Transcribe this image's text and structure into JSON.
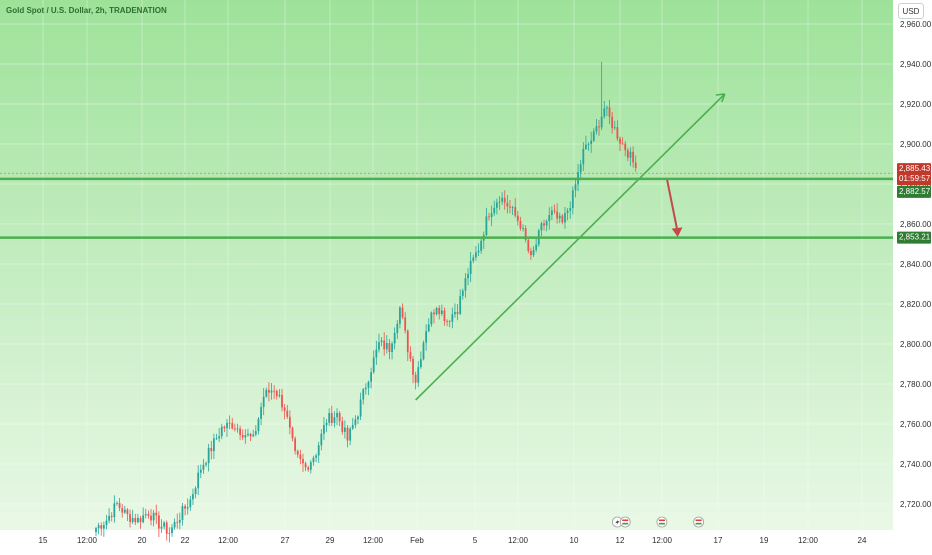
{
  "header": {
    "symbol_title": "Gold Spot / U.S. Dollar, 2h, TRADENATION",
    "currency_button": "USD"
  },
  "colors": {
    "plot_background": "#9ee29a",
    "plot_background_bottom": "#e9f8e6",
    "bullish_candle": "#26a69a",
    "bearish_candle": "#ef5350",
    "level_line": "#4caf50",
    "trend_line": "#4caf50",
    "arrow": "#c44a4a",
    "price_tag_red": "#c0392b",
    "price_tag_green": "#2e7d32",
    "axis_text": "#2d2d2d"
  },
  "chart_data": {
    "type": "candlestick",
    "title": "Gold Spot / U.S. Dollar, 2h, TRADENATION",
    "y_axis": {
      "ticks": [
        "2,720.00",
        "2,740.00",
        "2,760.00",
        "2,780.00",
        "2,800.00",
        "2,820.00",
        "2,840.00",
        "2,860.00",
        "2,880.00",
        "2,900.00",
        "2,920.00",
        "2,940.00",
        "2,960.00"
      ],
      "tick_values": [
        2720,
        2740,
        2760,
        2780,
        2800,
        2820,
        2840,
        2860,
        2880,
        2900,
        2920,
        2940,
        2960
      ],
      "range": [
        2707,
        2972
      ],
      "side": "right"
    },
    "x_axis": {
      "ticks": [
        "15",
        "12:00",
        "20",
        "22",
        "12:00",
        "27",
        "29",
        "12:00",
        "Feb",
        "5",
        "12:00",
        "10",
        "12",
        "12:00",
        "17",
        "19",
        "12:00",
        "24"
      ],
      "range_index": [
        0,
        222
      ]
    },
    "candles_close_path": [
      {
        "i": 0,
        "close": 2708
      },
      {
        "i": 4,
        "close": 2712
      },
      {
        "i": 8,
        "close": 2720
      },
      {
        "i": 12,
        "close": 2714
      },
      {
        "i": 16,
        "close": 2712
      },
      {
        "i": 20,
        "close": 2716
      },
      {
        "i": 24,
        "close": 2710
      },
      {
        "i": 28,
        "close": 2706
      },
      {
        "i": 32,
        "close": 2714
      },
      {
        "i": 36,
        "close": 2722
      },
      {
        "i": 40,
        "close": 2738
      },
      {
        "i": 44,
        "close": 2748
      },
      {
        "i": 48,
        "close": 2758
      },
      {
        "i": 52,
        "close": 2760
      },
      {
        "i": 56,
        "close": 2756
      },
      {
        "i": 60,
        "close": 2752
      },
      {
        "i": 64,
        "close": 2774
      },
      {
        "i": 68,
        "close": 2778
      },
      {
        "i": 72,
        "close": 2768
      },
      {
        "i": 76,
        "close": 2744
      },
      {
        "i": 80,
        "close": 2738
      },
      {
        "i": 84,
        "close": 2746
      },
      {
        "i": 88,
        "close": 2762
      },
      {
        "i": 92,
        "close": 2765
      },
      {
        "i": 96,
        "close": 2752
      },
      {
        "i": 100,
        "close": 2766
      },
      {
        "i": 104,
        "close": 2784
      },
      {
        "i": 108,
        "close": 2800
      },
      {
        "i": 112,
        "close": 2798
      },
      {
        "i": 116,
        "close": 2818
      },
      {
        "i": 119,
        "close": 2798
      },
      {
        "i": 122,
        "close": 2782
      },
      {
        "i": 126,
        "close": 2808
      },
      {
        "i": 130,
        "close": 2820
      },
      {
        "i": 134,
        "close": 2812
      },
      {
        "i": 138,
        "close": 2818
      },
      {
        "i": 142,
        "close": 2836
      },
      {
        "i": 146,
        "close": 2848
      },
      {
        "i": 150,
        "close": 2866
      },
      {
        "i": 154,
        "close": 2874
      },
      {
        "i": 158,
        "close": 2868
      },
      {
        "i": 162,
        "close": 2860
      },
      {
        "i": 166,
        "close": 2842
      },
      {
        "i": 170,
        "close": 2858
      },
      {
        "i": 174,
        "close": 2865
      },
      {
        "i": 178,
        "close": 2860
      },
      {
        "i": 182,
        "close": 2874
      },
      {
        "i": 186,
        "close": 2896
      },
      {
        "i": 190,
        "close": 2904
      },
      {
        "i": 194,
        "close": 2918
      },
      {
        "i": 197,
        "close": 2910
      },
      {
        "i": 200,
        "close": 2902
      },
      {
        "i": 203,
        "close": 2896
      },
      {
        "i": 206,
        "close": 2888
      }
    ],
    "last_index": 206,
    "horizontal_levels": [
      {
        "price": 2882.57,
        "label": "2,882.57"
      },
      {
        "price": 2853.21,
        "label": "2,853.21"
      }
    ],
    "current_price": {
      "price": 2885.43,
      "label": "2,885.43",
      "countdown": "01:59:57"
    },
    "trend_line": {
      "from": {
        "i": 122,
        "price": 2772
      },
      "to": {
        "i": 240,
        "price": 2925
      }
    },
    "projection_arrow": {
      "from": {
        "i": 218,
        "price": 2882
      },
      "to": {
        "i": 222,
        "price": 2854
      }
    },
    "event_markers": [
      {
        "i": 199,
        "icon": "flash-icon"
      },
      {
        "i": 202,
        "icon": "flag-icon"
      },
      {
        "i": 216,
        "icon": "flag-icon"
      },
      {
        "i": 230,
        "icon": "flag-icon"
      }
    ],
    "grid": true,
    "legend": "none"
  }
}
